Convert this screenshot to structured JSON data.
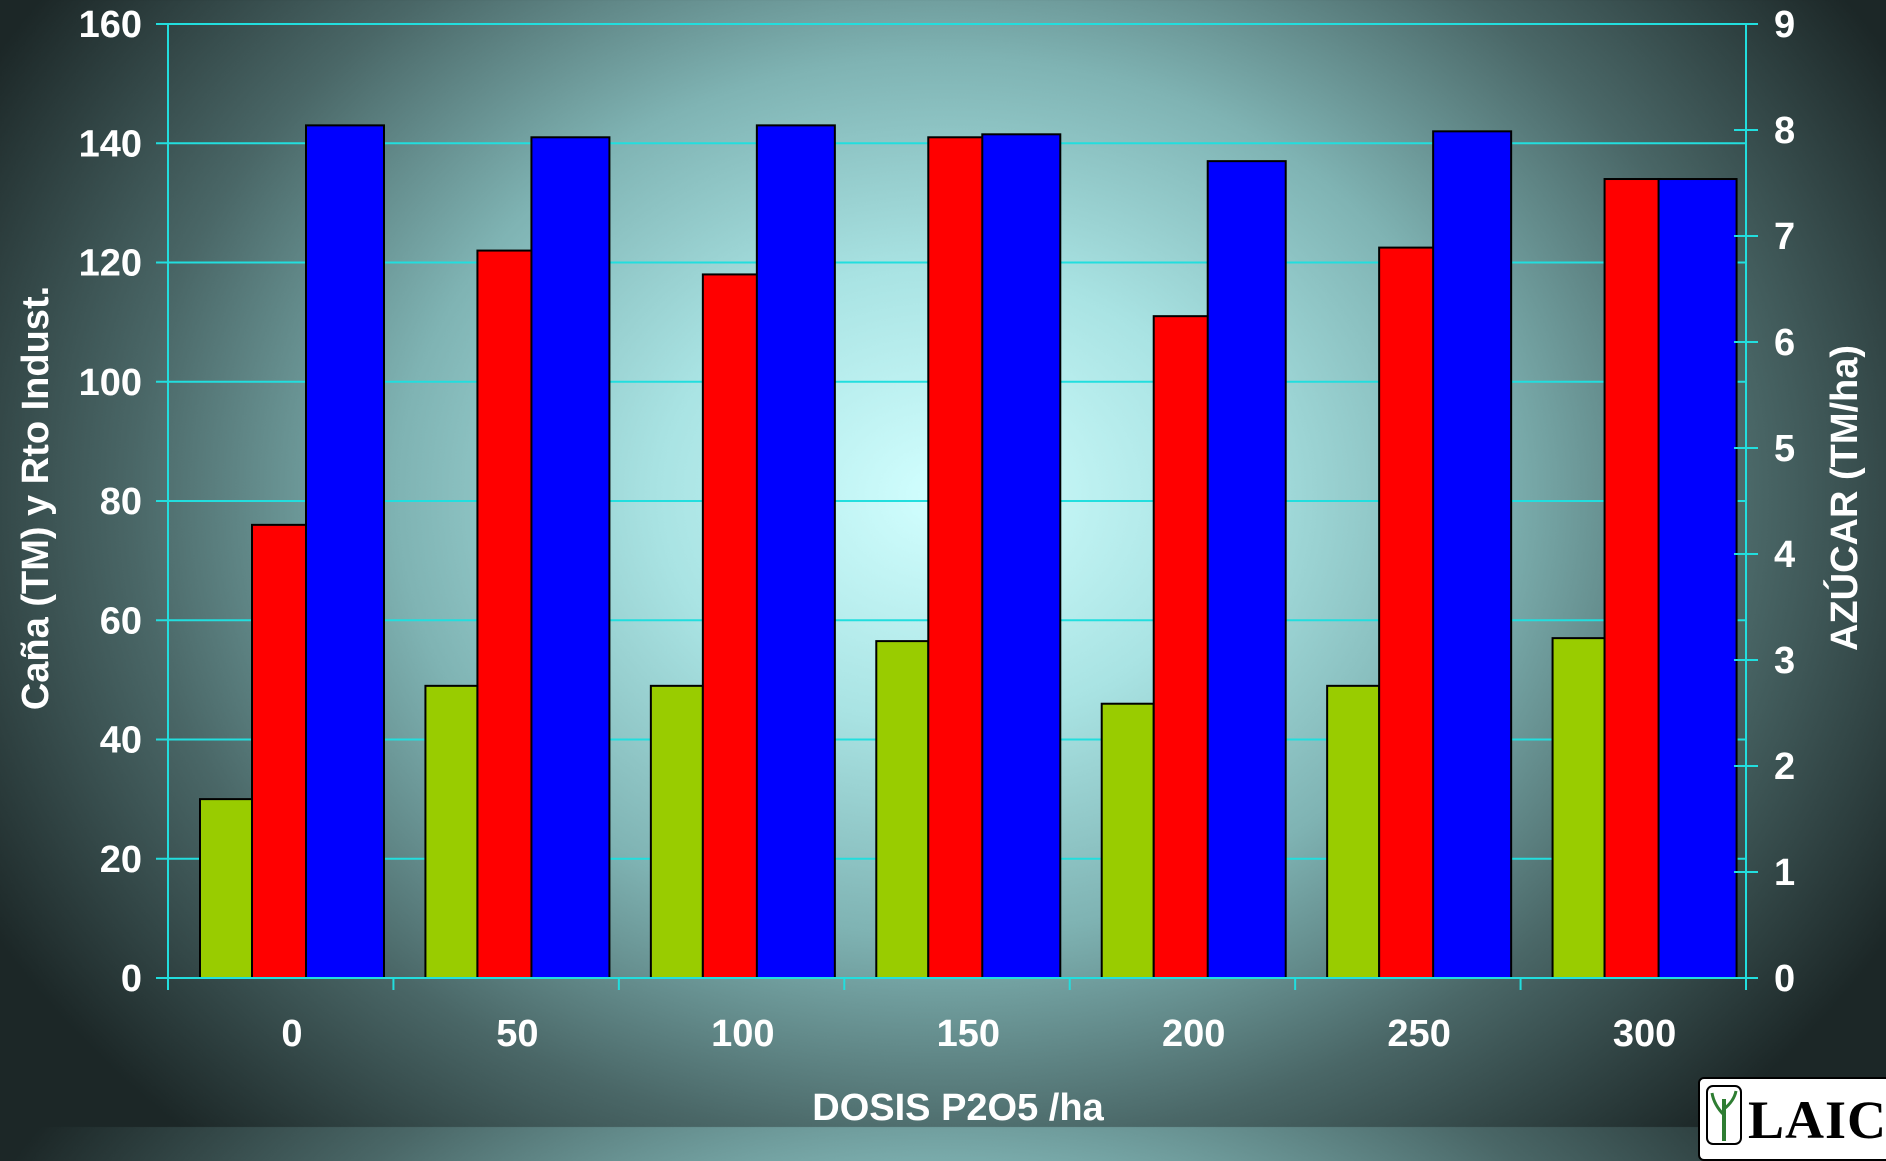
{
  "colors": {
    "grid": "#22dede",
    "axis": "#22dede",
    "text": "#ffffff",
    "series": [
      "#99cc00",
      "#ff0000",
      "#0000ff"
    ],
    "bar_stroke": "#000000"
  },
  "logo": {
    "text": "LAIC"
  },
  "chart_data": {
    "type": "bar",
    "title": "",
    "xlabel": "DOSIS P2O5 /ha",
    "ylabel": "Caña (TM) y Rto Indust.",
    "y2label": "AZÚCAR (TM/ha)",
    "categories": [
      "0",
      "50",
      "100",
      "150",
      "200",
      "250",
      "300"
    ],
    "ylim": [
      0,
      160
    ],
    "y2lim": [
      0,
      9
    ],
    "yticks": [
      "0",
      "20",
      "40",
      "60",
      "80",
      "100",
      "120",
      "140",
      "160"
    ],
    "y2ticks": [
      "0",
      "1",
      "2",
      "3",
      "4",
      "5",
      "6",
      "7",
      "8",
      "9"
    ],
    "grid": true,
    "legend": "none",
    "series": [
      {
        "values": [
          30,
          49,
          49,
          56.5,
          46,
          49,
          57
        ]
      },
      {
        "values": [
          76,
          122,
          118,
          141,
          111,
          122.5,
          134
        ]
      },
      {
        "values": [
          143,
          141,
          143,
          141.5,
          137,
          142,
          134
        ]
      }
    ]
  }
}
